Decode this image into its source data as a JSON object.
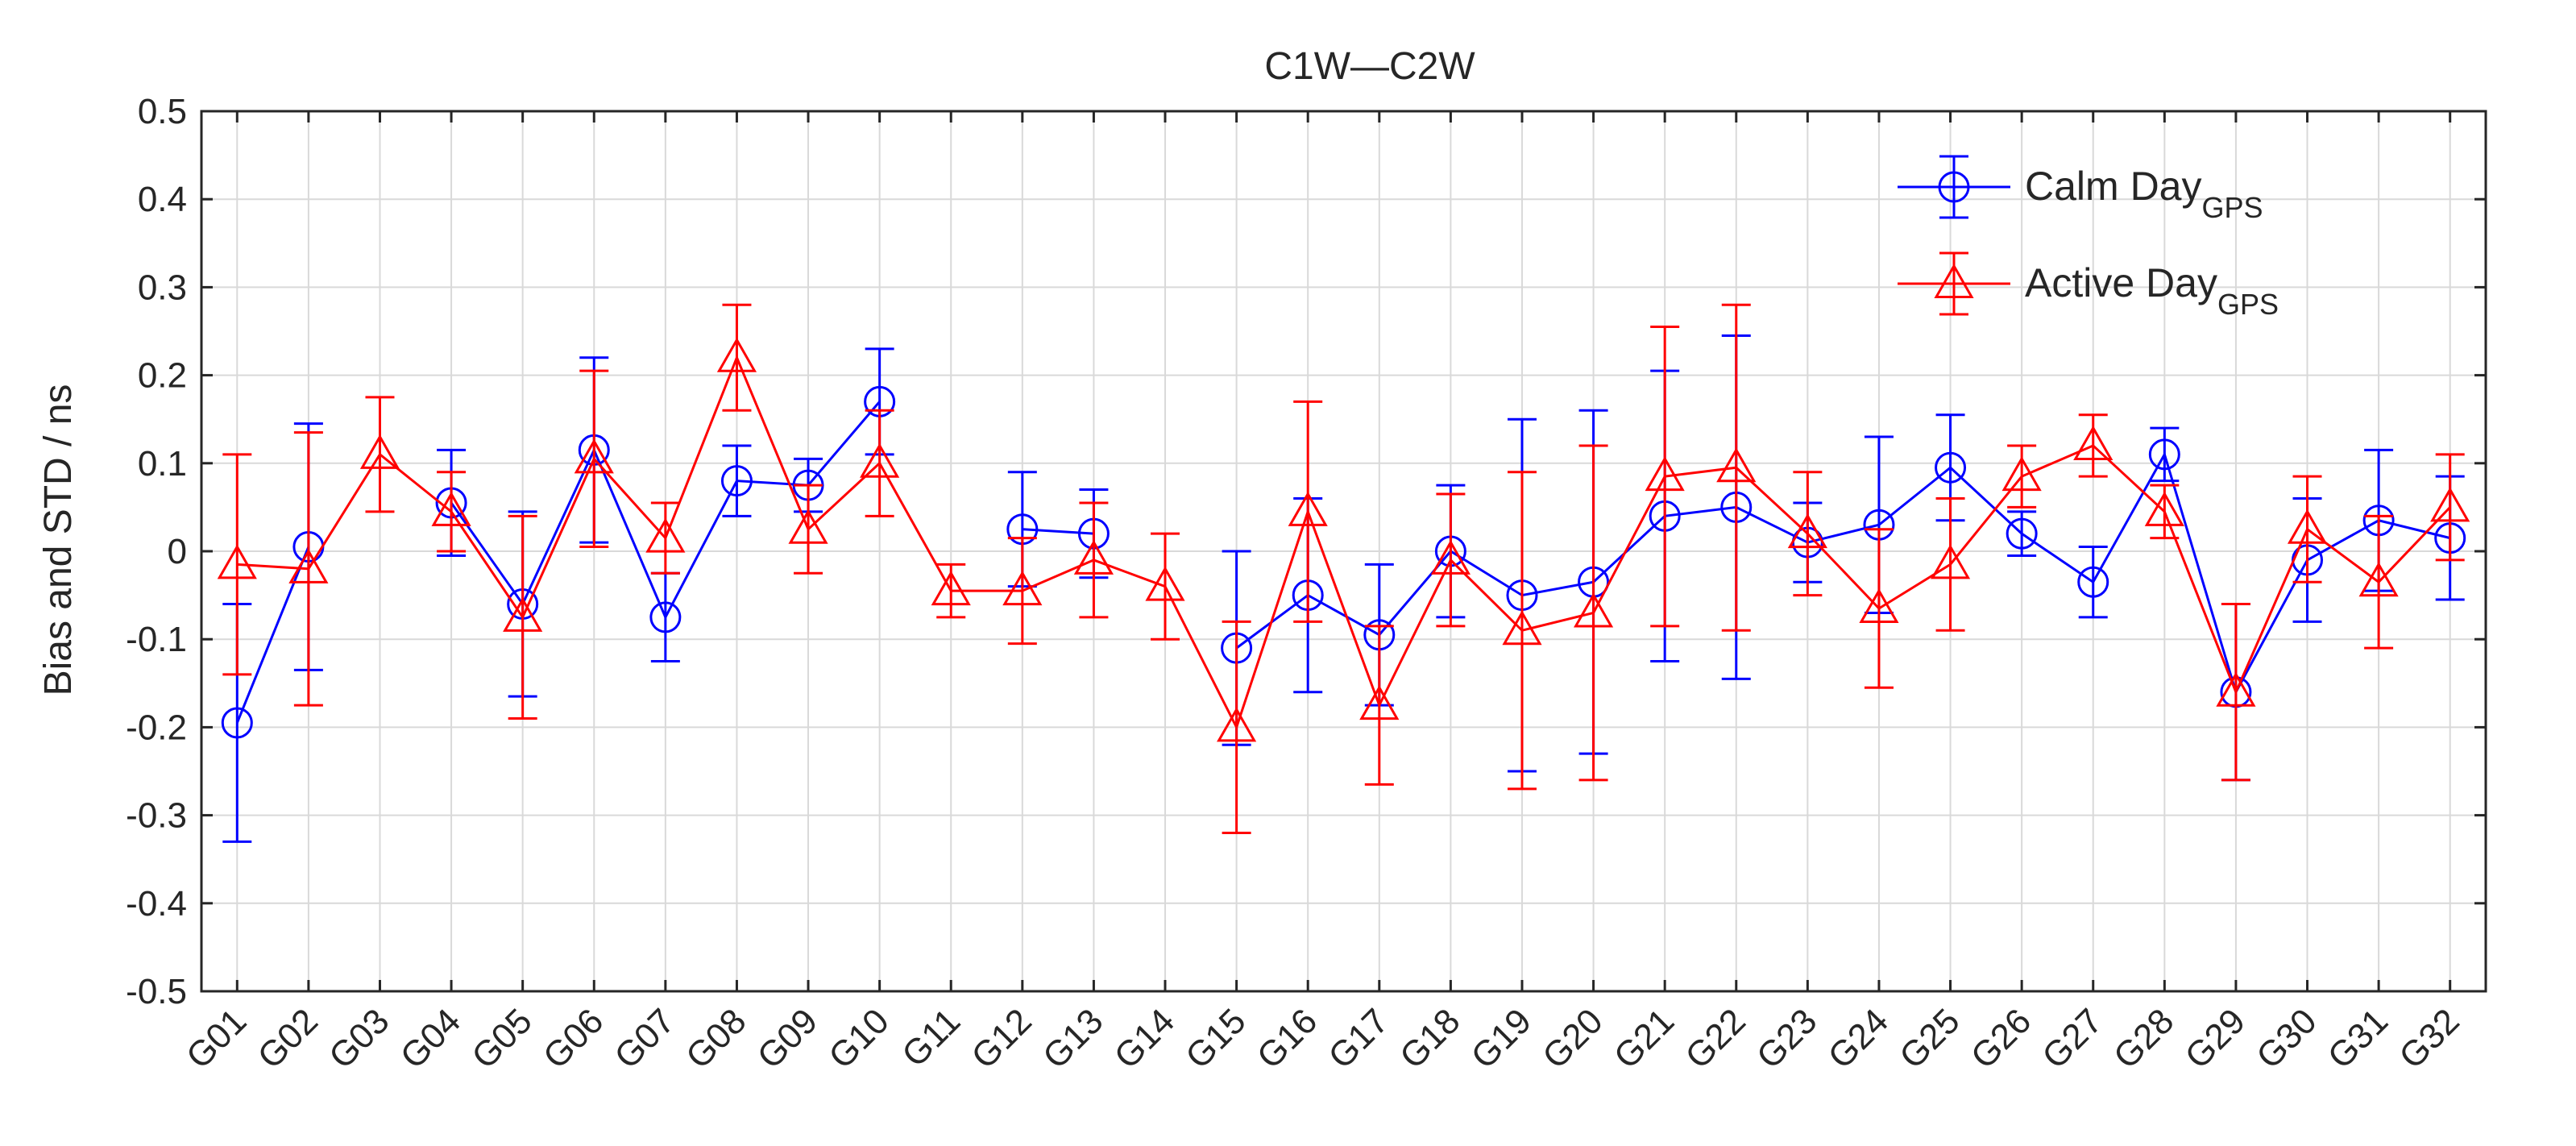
{
  "chart_data": {
    "type": "line",
    "title": "C1W—C2W",
    "xlabel": "",
    "ylabel": "Bias and STD / ns",
    "ylim": [
      -0.5,
      0.5
    ],
    "yticks": [
      "0.5",
      "0.4",
      "0.3",
      "0.2",
      "0.1",
      "0",
      "-0.1",
      "-0.2",
      "-0.3",
      "-0.4",
      "-0.5"
    ],
    "ytick_values": [
      0.5,
      0.4,
      0.3,
      0.2,
      0.1,
      0,
      -0.1,
      -0.2,
      -0.3,
      -0.4,
      -0.5
    ],
    "grid": true,
    "legend_position": "top-right",
    "categories": [
      "G01",
      "G02",
      "G03",
      "G04",
      "G05",
      "G06",
      "G07",
      "G08",
      "G09",
      "G10",
      "G11",
      "G12",
      "G13",
      "G14",
      "G15",
      "G16",
      "G17",
      "G18",
      "G19",
      "G20",
      "G21",
      "G22",
      "G23",
      "G24",
      "G25",
      "G26",
      "G27",
      "G28",
      "G29",
      "G30",
      "G31",
      "G32"
    ],
    "series": [
      {
        "name": "Calm Day",
        "name_subscript": "GPS",
        "color": "#0000ff",
        "marker": "circle",
        "values": [
          -0.195,
          0.005,
          null,
          0.055,
          -0.06,
          0.115,
          -0.075,
          0.08,
          0.075,
          0.17,
          null,
          0.025,
          0.02,
          null,
          -0.11,
          -0.05,
          -0.095,
          0.0,
          -0.05,
          -0.035,
          0.04,
          0.05,
          0.01,
          0.03,
          0.095,
          0.02,
          -0.035,
          0.11,
          -0.16,
          -0.01,
          0.035,
          0.015
        ],
        "std": [
          0.135,
          0.14,
          null,
          0.06,
          0.105,
          0.105,
          0.05,
          0.04,
          0.03,
          0.06,
          null,
          0.065,
          0.05,
          null,
          0.11,
          0.11,
          0.08,
          0.075,
          0.2,
          0.195,
          0.165,
          0.195,
          0.045,
          0.1,
          0.06,
          0.025,
          0.04,
          0.03,
          0.1,
          0.07,
          0.08,
          0.07
        ]
      },
      {
        "name": "Active Day",
        "name_subscript": "GPS",
        "color": "#ff0000",
        "marker": "triangle",
        "values": [
          -0.015,
          -0.02,
          0.11,
          0.045,
          -0.075,
          0.105,
          0.015,
          0.22,
          0.025,
          0.1,
          -0.045,
          -0.045,
          -0.01,
          -0.04,
          -0.2,
          0.045,
          -0.175,
          -0.01,
          -0.09,
          -0.07,
          0.085,
          0.095,
          0.02,
          -0.065,
          -0.015,
          0.085,
          0.12,
          0.045,
          -0.16,
          0.025,
          -0.035,
          0.05
        ],
        "std": [
          0.125,
          0.155,
          0.065,
          0.045,
          0.115,
          0.1,
          0.04,
          0.06,
          0.05,
          0.06,
          0.03,
          0.06,
          0.065,
          0.06,
          0.12,
          0.125,
          0.09,
          0.075,
          0.18,
          0.19,
          0.17,
          0.185,
          0.07,
          0.09,
          0.075,
          0.035,
          0.035,
          0.03,
          0.1,
          0.06,
          0.075,
          0.06
        ]
      }
    ]
  }
}
